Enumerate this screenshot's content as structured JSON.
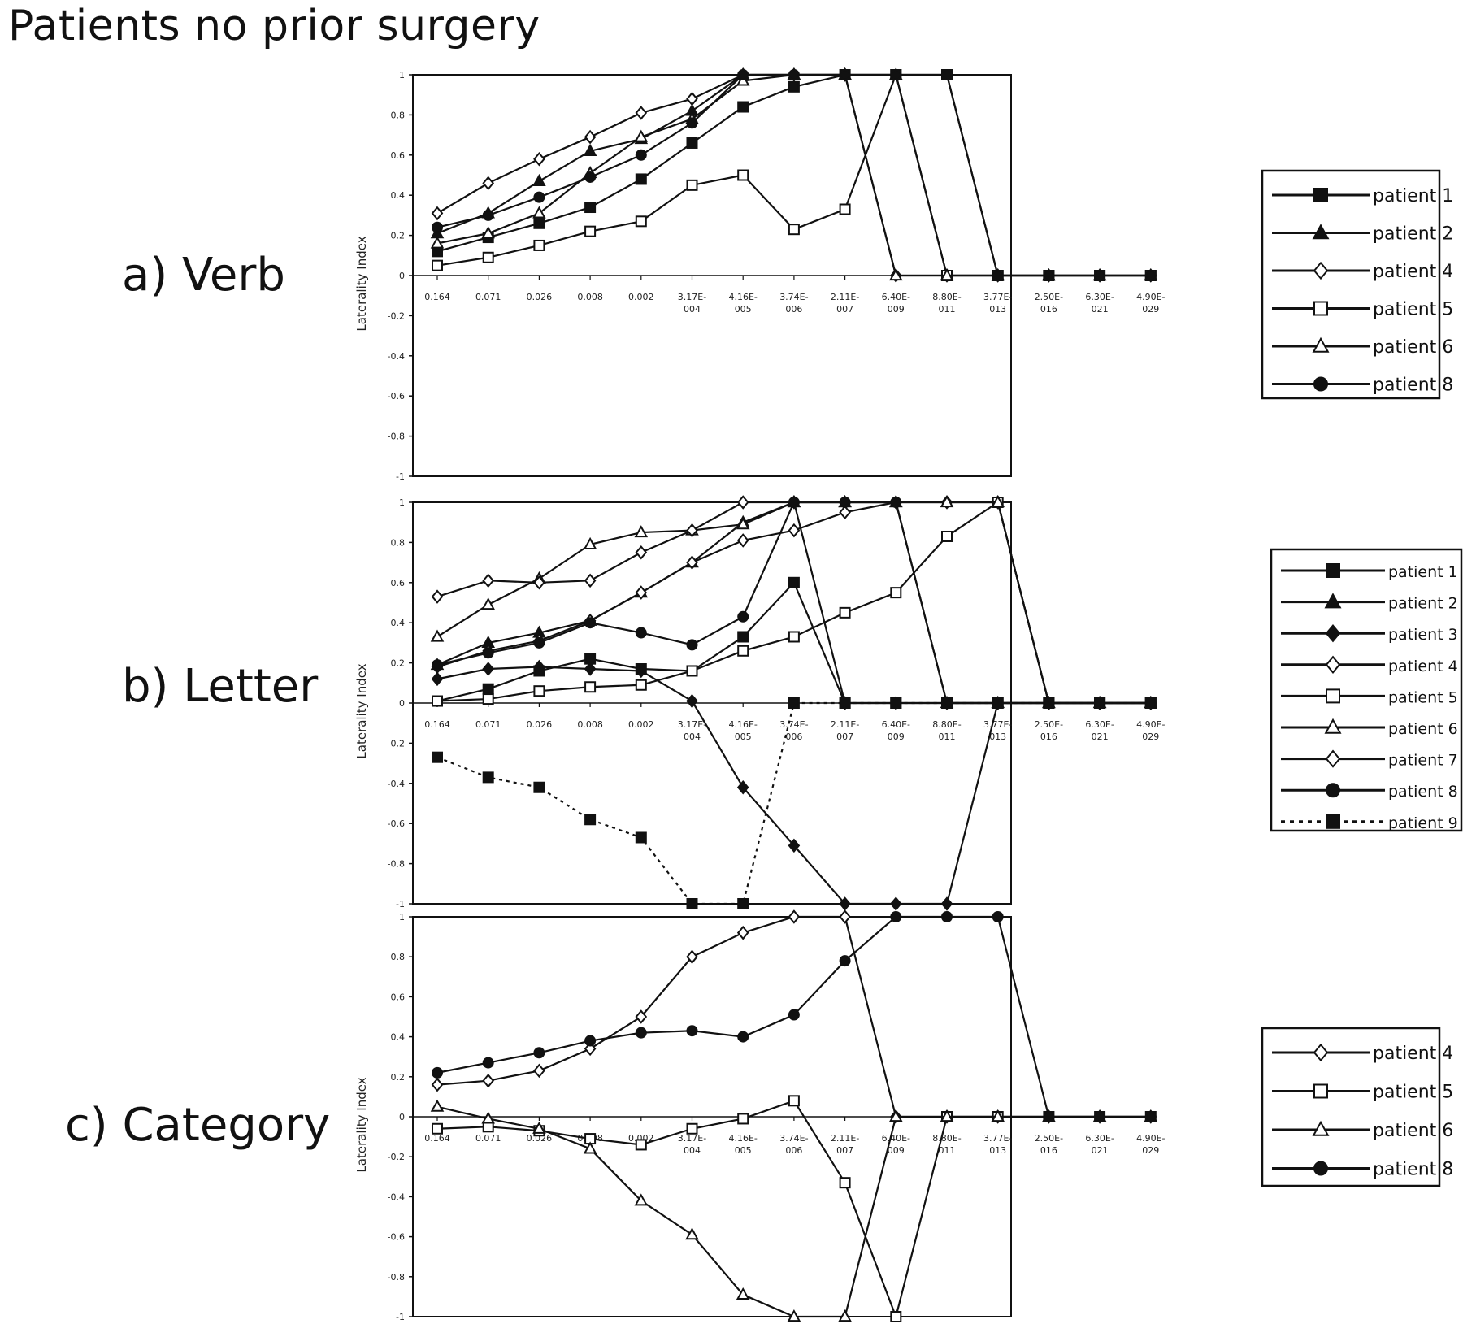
{
  "figure_title": "Patients no prior surgery",
  "chart_data": [
    {
      "type": "line",
      "panel_label": "a) Verb",
      "ylabel": "Laterality Index",
      "ylim": [
        -1,
        1
      ],
      "yticks": [
        "1",
        "0.8",
        "0.6",
        "0.4",
        "0.2",
        "0",
        "-0.2",
        "-0.4",
        "-0.6",
        "-0.8",
        "-1"
      ],
      "categories": [
        "0.164",
        "0.071",
        "0.026",
        "0.008",
        "0.002",
        "3.17E-\n004",
        "4.16E-\n005",
        "3.74E-\n006",
        "2.11E-\n007",
        "6.40E-\n009",
        "8.80E-\n011",
        "3.77E-\n013",
        "2.50E-\n016",
        "6.30E-\n021",
        "4.90E-\n029"
      ],
      "series": [
        {
          "name": "patient 1",
          "marker": "square-filled",
          "dashed": false,
          "values": [
            0.12,
            0.19,
            0.26,
            0.34,
            0.48,
            0.66,
            0.84,
            0.94,
            1,
            1,
            1,
            0,
            0,
            0,
            0
          ]
        },
        {
          "name": "patient 2",
          "marker": "triangle-filled",
          "dashed": false,
          "values": [
            0.21,
            0.31,
            0.47,
            0.62,
            0.68,
            0.82,
            1,
            1,
            1,
            1,
            0,
            0,
            0,
            0,
            0
          ]
        },
        {
          "name": "patient 4",
          "marker": "diamond-open",
          "dashed": false,
          "values": [
            0.31,
            0.46,
            0.58,
            0.69,
            0.81,
            0.88,
            1,
            1,
            1,
            0,
            0,
            0,
            0,
            0,
            0
          ]
        },
        {
          "name": "patient 5",
          "marker": "square-open",
          "dashed": false,
          "values": [
            0.05,
            0.09,
            0.15,
            0.22,
            0.27,
            0.45,
            0.5,
            0.23,
            0.33,
            1,
            0,
            0,
            0,
            0,
            0
          ]
        },
        {
          "name": "patient 6",
          "marker": "triangle-open",
          "dashed": false,
          "values": [
            0.16,
            0.21,
            0.31,
            0.51,
            0.69,
            0.78,
            0.97,
            1,
            1,
            0,
            0,
            0,
            0,
            0,
            0
          ]
        },
        {
          "name": "patient 8",
          "marker": "circle-filled",
          "dashed": false,
          "values": [
            0.24,
            0.3,
            0.39,
            0.49,
            0.6,
            0.76,
            1,
            1,
            1,
            1,
            1,
            0,
            0,
            0,
            0
          ]
        }
      ]
    },
    {
      "type": "line",
      "panel_label": "b) Letter",
      "ylabel": "Laterality Index",
      "ylim": [
        -1,
        1
      ],
      "yticks": [
        "1",
        "0.8",
        "0.6",
        "0.4",
        "0.2",
        "0",
        "-0.2",
        "-0.4",
        "-0.6",
        "-0.8",
        "-1"
      ],
      "categories": [
        "0.164",
        "0.071",
        "0.026",
        "0.008",
        "0.002",
        "3.17E-\n004",
        "4.16E-\n005",
        "3.74E-\n006",
        "2.11E-\n007",
        "6.40E-\n009",
        "8.80E-\n011",
        "3.77E-\n013",
        "2.50E-\n016",
        "6.30E-\n021",
        "4.90E-\n029"
      ],
      "series": [
        {
          "name": "patient 1",
          "marker": "square-filled",
          "dashed": false,
          "values": [
            0.01,
            0.07,
            0.16,
            0.22,
            0.17,
            0.16,
            0.33,
            0.6,
            0,
            0,
            0,
            0,
            0,
            0,
            0
          ]
        },
        {
          "name": "patient 2",
          "marker": "triangle-filled",
          "dashed": false,
          "values": [
            0.19,
            0.3,
            0.35,
            0.41,
            0.55,
            0.7,
            0.9,
            1,
            1,
            1,
            0,
            0,
            0,
            0,
            0
          ]
        },
        {
          "name": "patient 3",
          "marker": "diamond-filled",
          "dashed": false,
          "values": [
            0.12,
            0.17,
            0.18,
            0.17,
            0.16,
            0.01,
            -0.42,
            -0.71,
            -1,
            -1,
            -1,
            0,
            0,
            0,
            0
          ]
        },
        {
          "name": "patient 4",
          "marker": "diamond-open",
          "dashed": false,
          "values": [
            0.18,
            0.26,
            0.31,
            0.41,
            0.55,
            0.7,
            0.81,
            0.86,
            0.95,
            1,
            1,
            1,
            0,
            0,
            0
          ]
        },
        {
          "name": "patient 5",
          "marker": "square-open",
          "dashed": false,
          "values": [
            0.01,
            0.02,
            0.06,
            0.08,
            0.09,
            0.16,
            0.26,
            0.33,
            0.45,
            0.55,
            0.83,
            1,
            0,
            0,
            0
          ]
        },
        {
          "name": "patient 6",
          "marker": "triangle-open",
          "dashed": false,
          "values": [
            0.33,
            0.49,
            0.62,
            0.79,
            0.85,
            0.86,
            0.89,
            1,
            1,
            1,
            1,
            1,
            0,
            0,
            0
          ]
        },
        {
          "name": "patient 7",
          "marker": "diamond-open",
          "dashed": false,
          "values": [
            0.53,
            0.61,
            0.6,
            0.61,
            0.75,
            0.86,
            1,
            1,
            0,
            0,
            0,
            0,
            0,
            0,
            0
          ]
        },
        {
          "name": "patient 8",
          "marker": "circle-filled",
          "dashed": false,
          "values": [
            0.19,
            0.25,
            0.3,
            0.4,
            0.35,
            0.29,
            0.43,
            1,
            1,
            1,
            0,
            0,
            0,
            0,
            0
          ]
        },
        {
          "name": "patient 9",
          "marker": "square-filled",
          "dashed": true,
          "values": [
            -0.27,
            -0.37,
            -0.42,
            -0.58,
            -0.67,
            -1,
            -1,
            0,
            0,
            0,
            0,
            0,
            0,
            0,
            0
          ]
        }
      ]
    },
    {
      "type": "line",
      "panel_label": "c) Category",
      "ylabel": "Laterality Index",
      "ylim": [
        -1,
        1
      ],
      "yticks": [
        "1",
        "0.8",
        "0.6",
        "0.4",
        "0.2",
        "0",
        "-0.2",
        "-0.4",
        "-0.6",
        "-0.8",
        "-1"
      ],
      "categories": [
        "0.164",
        "0.071",
        "0.026",
        "0.008",
        "0.002",
        "3.17E-\n004",
        "4.16E-\n005",
        "3.74E-\n006",
        "2.11E-\n007",
        "6.40E-\n009",
        "8.80E-\n011",
        "3.77E-\n013",
        "2.50E-\n016",
        "6.30E-\n021",
        "4.90E-\n029"
      ],
      "series": [
        {
          "name": "patient 4",
          "marker": "diamond-open",
          "dashed": false,
          "values": [
            0.16,
            0.18,
            0.23,
            0.34,
            0.5,
            0.8,
            0.92,
            1,
            1,
            0,
            0,
            0,
            0,
            0,
            0
          ]
        },
        {
          "name": "patient 5",
          "marker": "square-open",
          "dashed": false,
          "values": [
            -0.06,
            -0.05,
            -0.07,
            -0.11,
            -0.14,
            -0.06,
            -0.01,
            0.08,
            -0.33,
            -1,
            0,
            0,
            0,
            0,
            0
          ]
        },
        {
          "name": "patient 6",
          "marker": "triangle-open",
          "dashed": false,
          "values": [
            0.05,
            -0.01,
            -0.06,
            -0.16,
            -0.42,
            -0.59,
            -0.89,
            -1,
            -1,
            0,
            0,
            0,
            0,
            0,
            0
          ]
        },
        {
          "name": "patient 8",
          "marker": "circle-filled",
          "dashed": false,
          "values": [
            0.22,
            0.27,
            0.32,
            0.38,
            0.42,
            0.43,
            0.4,
            0.51,
            0.78,
            1,
            1,
            1,
            0,
            0,
            0
          ]
        }
      ]
    }
  ]
}
